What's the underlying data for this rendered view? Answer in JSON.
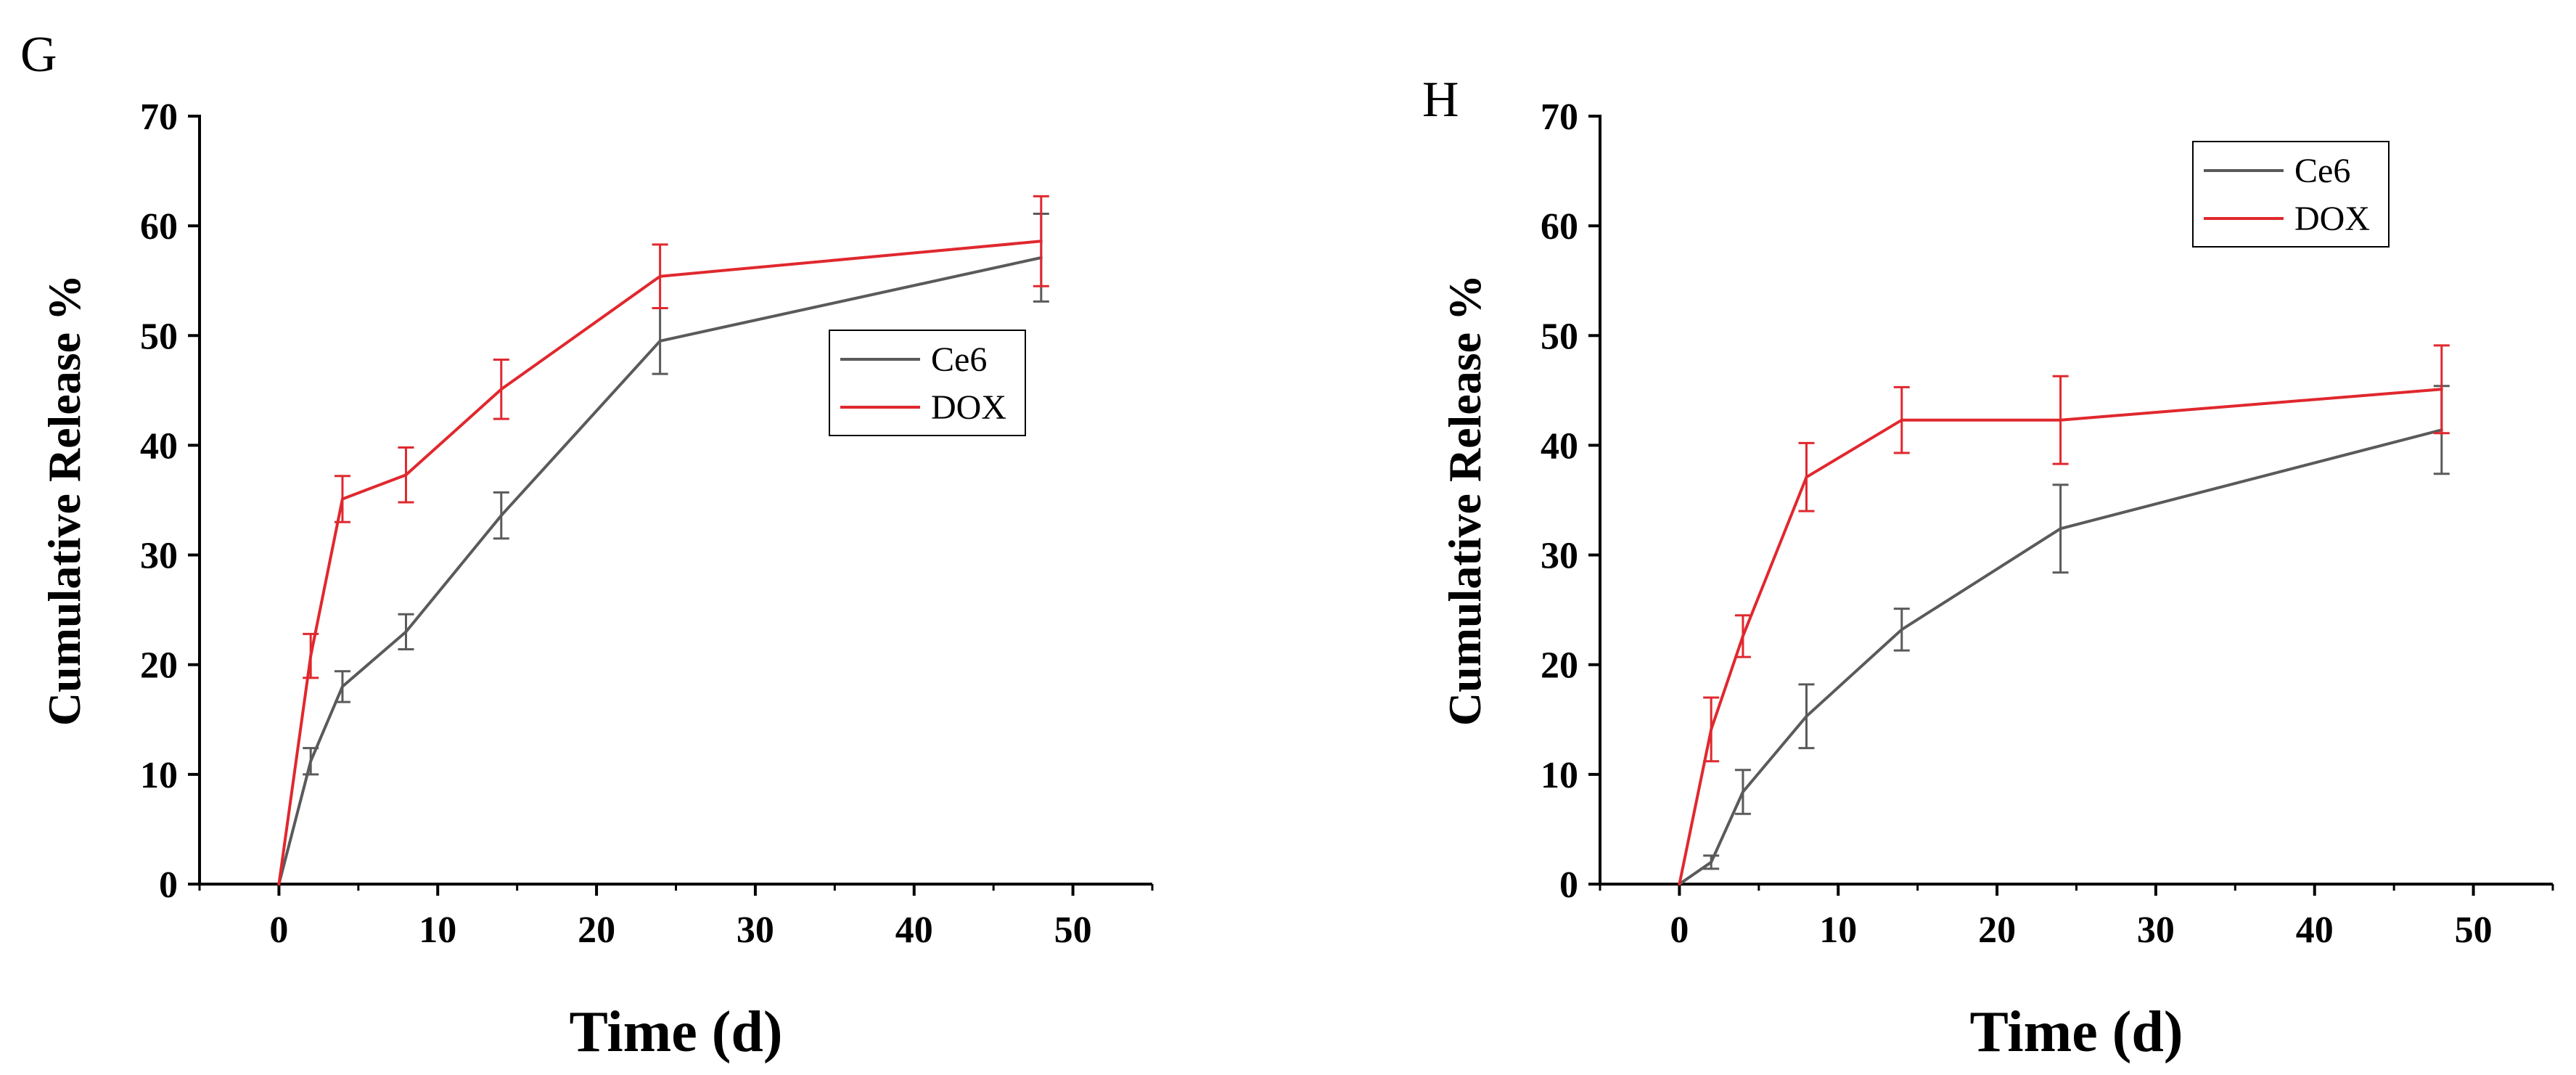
{
  "figure": {
    "panels": [
      {
        "id": "G",
        "letter": "G"
      },
      {
        "id": "H",
        "letter": "H"
      }
    ]
  },
  "chart_data": [
    {
      "type": "line",
      "panel": "G",
      "title": "",
      "xlabel": "Time (d)",
      "ylabel": "Cumulative Release %",
      "xlim": [
        -5,
        55
      ],
      "ylim": [
        0,
        70
      ],
      "xticks": [
        0,
        10,
        20,
        30,
        40,
        50
      ],
      "yticks": [
        0,
        10,
        20,
        30,
        40,
        50,
        60,
        70
      ],
      "legend_position": "center-right",
      "series": [
        {
          "name": "Ce6",
          "color": "#5a5a5a",
          "x": [
            0,
            2,
            4,
            8,
            14,
            24,
            48
          ],
          "y": [
            0,
            11.2,
            18,
            23,
            33.6,
            49.5,
            57.1
          ],
          "err": [
            0,
            1.2,
            1.4,
            1.6,
            2.1,
            3,
            4
          ]
        },
        {
          "name": "DOX",
          "color": "#e0282e",
          "x": [
            0,
            2,
            4,
            8,
            14,
            24,
            48
          ],
          "y": [
            0,
            20.8,
            35.1,
            37.3,
            45.1,
            55.4,
            58.6
          ],
          "err": [
            0,
            2,
            2.1,
            2.5,
            2.7,
            2.9,
            4.1
          ]
        }
      ]
    },
    {
      "type": "line",
      "panel": "H",
      "title": "",
      "xlabel": "Time (d)",
      "ylabel": "Cumulative Release %",
      "xlim": [
        -5,
        55
      ],
      "ylim": [
        0,
        70
      ],
      "xticks": [
        0,
        10,
        20,
        30,
        40,
        50
      ],
      "yticks": [
        0,
        10,
        20,
        30,
        40,
        50,
        60,
        70
      ],
      "legend_position": "top-right",
      "series": [
        {
          "name": "Ce6",
          "color": "#5a5a5a",
          "x": [
            0,
            2,
            4,
            8,
            14,
            24,
            48
          ],
          "y": [
            0,
            2,
            8.4,
            15.3,
            23.2,
            32.4,
            41.4
          ],
          "err": [
            0,
            0.6,
            2,
            2.9,
            1.9,
            4,
            4
          ]
        },
        {
          "name": "DOX",
          "color": "#e0282e",
          "x": [
            0,
            2,
            4,
            8,
            14,
            24,
            48
          ],
          "y": [
            0,
            14.1,
            22.6,
            37.1,
            42.3,
            42.3,
            45.1
          ],
          "err": [
            0,
            2.9,
            1.9,
            3.1,
            3,
            4,
            4
          ]
        }
      ]
    }
  ]
}
